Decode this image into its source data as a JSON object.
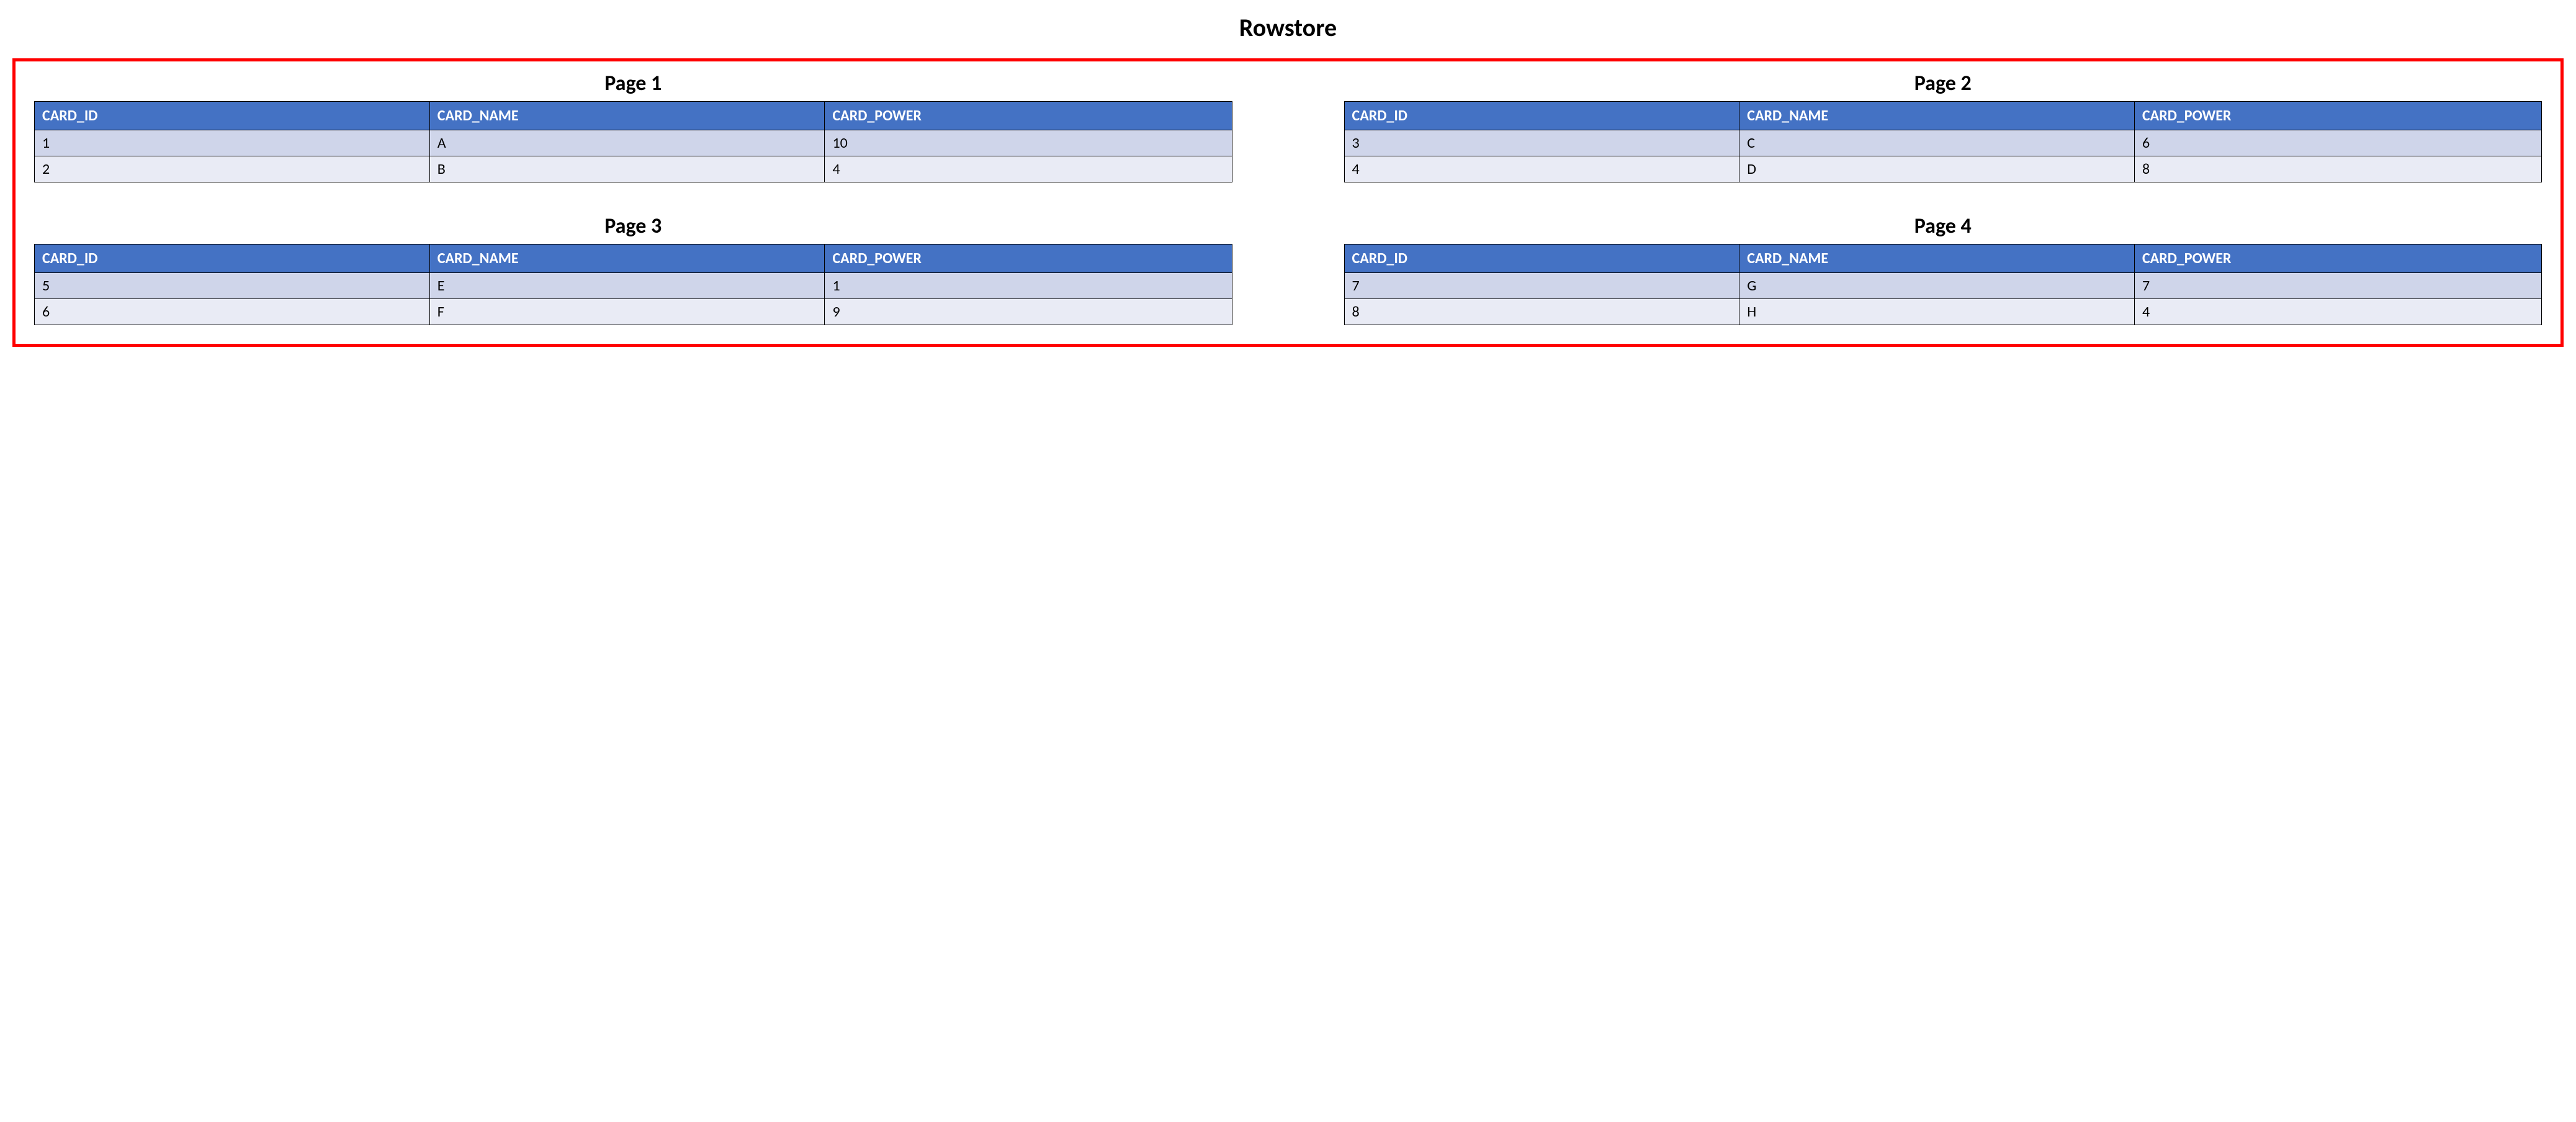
{
  "title": "Rowstore",
  "container_border_color": "#ff0000",
  "container_border_width": 5,
  "background_color": "#ffffff",
  "title_fontsize": 40,
  "page_title_fontsize": 34,
  "header_bg_color": "#4472c4",
  "header_text_color": "#ffffff",
  "row_odd_bg_color": "#cfd5ea",
  "row_even_bg_color": "#e9ebf5",
  "cell_border_color": "#000000",
  "cell_fontsize": 24,
  "columns": [
    "CARD_ID",
    "CARD_NAME",
    "CARD_POWER"
  ],
  "pages": [
    {
      "title": "Page 1",
      "rows": [
        [
          "1",
          "A",
          "10"
        ],
        [
          "2",
          "B",
          "4"
        ]
      ]
    },
    {
      "title": "Page 2",
      "rows": [
        [
          "3",
          "C",
          "6"
        ],
        [
          "4",
          "D",
          "8"
        ]
      ]
    },
    {
      "title": "Page 3",
      "rows": [
        [
          "5",
          "E",
          "1"
        ],
        [
          "6",
          "F",
          "9"
        ]
      ]
    },
    {
      "title": "Page 4",
      "rows": [
        [
          "7",
          "G",
          "7"
        ],
        [
          "8",
          "H",
          "4"
        ]
      ]
    }
  ]
}
